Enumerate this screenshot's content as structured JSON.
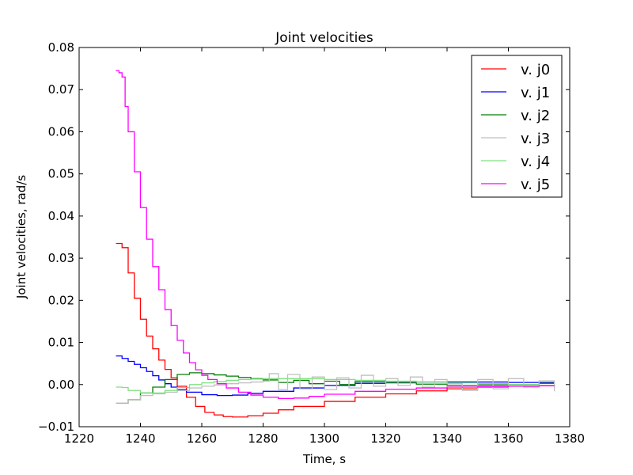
{
  "chart_data": {
    "type": "line",
    "title": "Joint velocities",
    "xlabel": "Time, s",
    "ylabel": "Joint velocities, rad/s",
    "xlim": [
      1220,
      1380
    ],
    "ylim": [
      -0.01,
      0.08
    ],
    "xticks": [
      1220,
      1240,
      1260,
      1280,
      1300,
      1320,
      1340,
      1360,
      1380
    ],
    "yticks": [
      -0.01,
      0.0,
      0.01,
      0.02,
      0.03,
      0.04,
      0.05,
      0.06,
      0.07,
      0.08
    ],
    "xtick_labels": [
      "1220",
      "1240",
      "1260",
      "1280",
      "1300",
      "1320",
      "1340",
      "1360",
      "1380"
    ],
    "ytick_labels": [
      "−0.01",
      "0.00",
      "0.01",
      "0.02",
      "0.03",
      "0.04",
      "0.05",
      "0.06",
      "0.07",
      "0.08"
    ],
    "grid": false,
    "legend_position": "top-right",
    "series": [
      {
        "name": "v. j0",
        "color": "#ff0000",
        "x": [
          1232,
          1234,
          1236,
          1238,
          1240,
          1242,
          1244,
          1246,
          1248,
          1250,
          1252,
          1255,
          1258,
          1261,
          1264,
          1267,
          1270,
          1275,
          1280,
          1285,
          1290,
          1300,
          1310,
          1320,
          1330,
          1340,
          1350,
          1360,
          1370,
          1375
        ],
        "y": [
          0.0335,
          0.0325,
          0.0265,
          0.0205,
          0.0155,
          0.0115,
          0.0085,
          0.0058,
          0.0036,
          0.0016,
          -0.0004,
          -0.003,
          -0.0052,
          -0.0066,
          -0.0072,
          -0.0076,
          -0.0077,
          -0.0074,
          -0.0068,
          -0.006,
          -0.0052,
          -0.004,
          -0.003,
          -0.0022,
          -0.0015,
          -0.001,
          -0.0006,
          -0.0004,
          -0.0002,
          -0.0001
        ]
      },
      {
        "name": "v. j1",
        "color": "#0000ff",
        "x": [
          1232,
          1234,
          1236,
          1238,
          1240,
          1242,
          1244,
          1246,
          1248,
          1250,
          1252,
          1255,
          1260,
          1265,
          1270,
          1275,
          1280,
          1290,
          1300,
          1310,
          1320,
          1330,
          1340,
          1350,
          1360,
          1370,
          1375
        ],
        "y": [
          0.0068,
          0.0062,
          0.0055,
          0.0048,
          0.004,
          0.0031,
          0.0021,
          0.0011,
          0.0002,
          -0.0006,
          -0.0012,
          -0.0018,
          -0.0024,
          -0.0026,
          -0.0025,
          -0.0021,
          -0.0016,
          -0.0008,
          -0.0002,
          0.0003,
          0.0005,
          0.0006,
          0.0006,
          0.0006,
          0.0005,
          0.0005,
          0.0005
        ]
      },
      {
        "name": "v. j2",
        "color": "#007f00",
        "x": [
          1232,
          1236,
          1240,
          1244,
          1248,
          1252,
          1256,
          1260,
          1264,
          1268,
          1272,
          1276,
          1280,
          1285,
          1290,
          1295,
          1300,
          1305,
          1310,
          1320,
          1330,
          1340,
          1350,
          1360,
          1370,
          1375
        ],
        "y": [
          -0.0044,
          -0.0036,
          -0.002,
          -0.0006,
          0.0012,
          0.0024,
          0.0028,
          0.0026,
          0.0023,
          0.002,
          0.0017,
          0.0014,
          0.0011,
          0.0005,
          0.001,
          0.0002,
          0.0008,
          0.0,
          0.0007,
          0.0004,
          0.0001,
          -0.0002,
          -0.0001,
          0.0,
          0.0003,
          0.0004
        ]
      },
      {
        "name": "v. j3",
        "color": "#bfbfbf",
        "x": [
          1232,
          1236,
          1240,
          1244,
          1248,
          1252,
          1256,
          1260,
          1264,
          1268,
          1272,
          1276,
          1280,
          1282,
          1285,
          1288,
          1292,
          1296,
          1300,
          1304,
          1308,
          1312,
          1316,
          1320,
          1324,
          1328,
          1332,
          1336,
          1340,
          1345,
          1350,
          1355,
          1360,
          1365,
          1370,
          1375
        ],
        "y": [
          -0.0044,
          -0.0036,
          -0.0026,
          -0.0022,
          -0.0018,
          -0.0014,
          -0.0008,
          -0.0004,
          -0.0001,
          0.0002,
          0.0004,
          0.0006,
          0.0008,
          0.0026,
          -0.0012,
          0.0024,
          -0.001,
          0.0018,
          -0.0012,
          0.0016,
          -0.0008,
          0.0022,
          -0.0004,
          0.0014,
          -0.0002,
          0.0018,
          -0.0006,
          0.0012,
          0.0002,
          -0.0014,
          0.0012,
          -0.001,
          0.0014,
          -0.0006,
          0.0009,
          -0.0016
        ]
      },
      {
        "name": "v. j4",
        "color": "#7fe07f",
        "x": [
          1232,
          1234,
          1236,
          1240,
          1244,
          1248,
          1252,
          1256,
          1260,
          1264,
          1268,
          1272,
          1276,
          1280,
          1290,
          1300,
          1310,
          1320,
          1330,
          1340,
          1350,
          1360,
          1370,
          1375
        ],
        "y": [
          -0.0006,
          -0.0007,
          -0.0014,
          -0.002,
          -0.002,
          -0.0014,
          -0.0007,
          0.0,
          0.0004,
          0.0007,
          0.001,
          0.0012,
          0.0013,
          0.0014,
          0.0014,
          0.0012,
          0.001,
          0.0008,
          0.0006,
          0.0004,
          0.0002,
          0.0,
          -0.0002,
          -0.0003
        ]
      },
      {
        "name": "v. j5",
        "color": "#ff00ff",
        "x": [
          1232,
          1233,
          1234,
          1235,
          1236,
          1238,
          1240,
          1242,
          1244,
          1246,
          1248,
          1250,
          1252,
          1254,
          1256,
          1258,
          1260,
          1262,
          1265,
          1268,
          1272,
          1276,
          1280,
          1285,
          1290,
          1295,
          1300,
          1310,
          1320,
          1330,
          1340,
          1350,
          1360,
          1370,
          1375
        ],
        "y": [
          0.0745,
          0.074,
          0.073,
          0.066,
          0.06,
          0.0505,
          0.042,
          0.0345,
          0.028,
          0.0225,
          0.0178,
          0.014,
          0.0105,
          0.0075,
          0.0052,
          0.0035,
          0.0022,
          0.0012,
          0.0002,
          -0.0008,
          -0.0018,
          -0.0025,
          -0.003,
          -0.0033,
          -0.0032,
          -0.0028,
          -0.0023,
          -0.0016,
          -0.0011,
          -0.0008,
          -0.0006,
          -0.0005,
          -0.0004,
          -0.0003,
          -0.0003
        ]
      }
    ]
  }
}
